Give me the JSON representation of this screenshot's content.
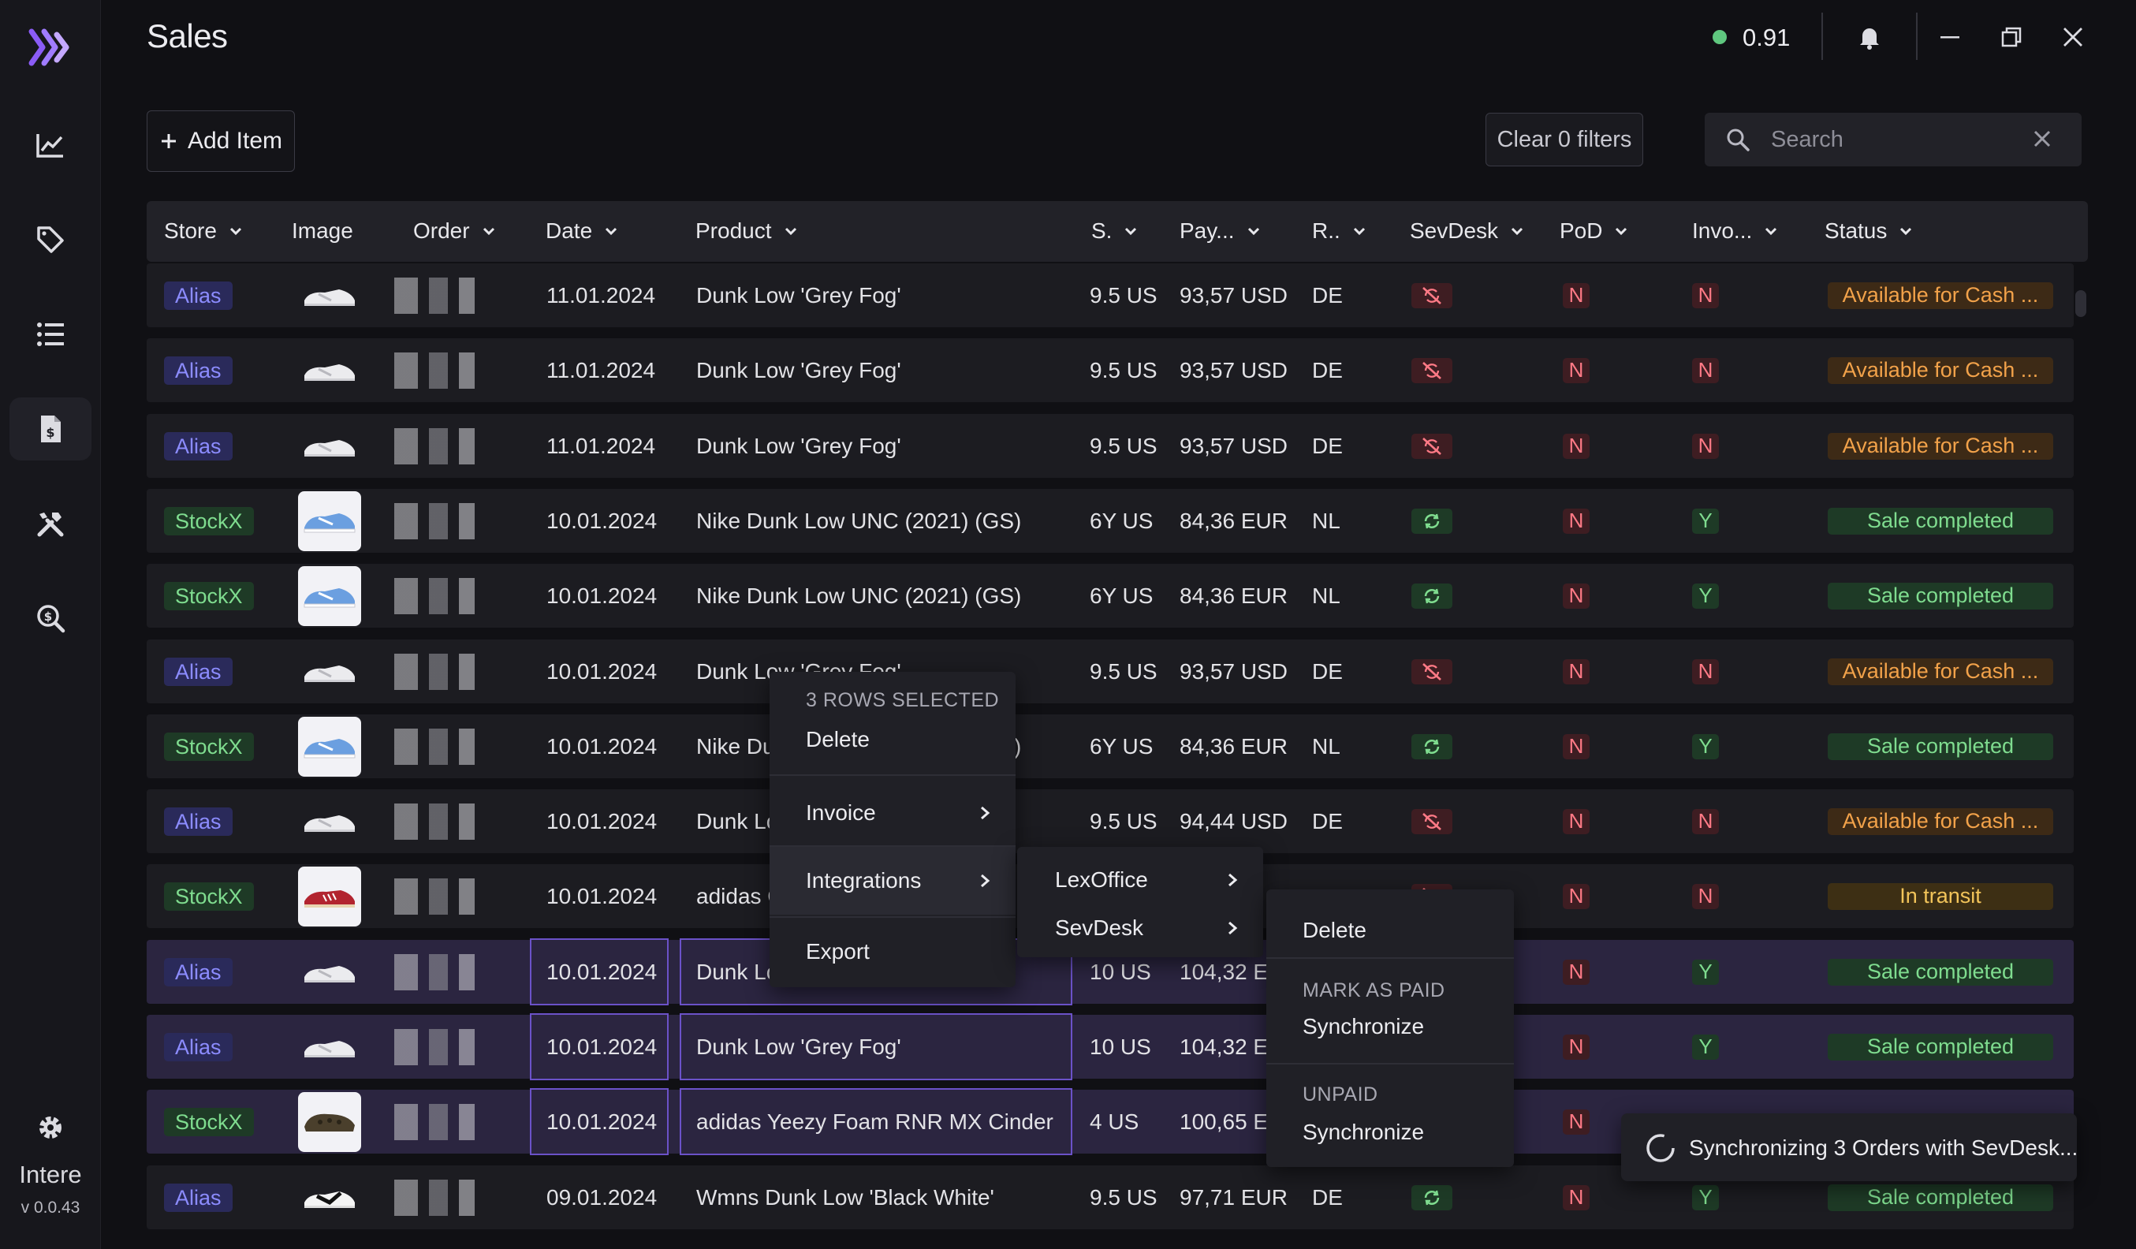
{
  "app": {
    "name": "Intere",
    "version": "v 0.0.43"
  },
  "page": {
    "title": "Sales"
  },
  "titlebar": {
    "connection_value": "0.91",
    "connection_color": "#5fc77f"
  },
  "toolbar": {
    "add_item_label": "Add Item",
    "clear_filters_label": "Clear 0 filters",
    "search_placeholder": "Search"
  },
  "sidebar": {
    "items": [
      {
        "icon": "chart-icon"
      },
      {
        "icon": "tag-icon"
      },
      {
        "icon": "list-icon"
      },
      {
        "icon": "invoice-icon",
        "active": true
      },
      {
        "icon": "tools-icon"
      },
      {
        "icon": "search-dollar-icon"
      }
    ],
    "settings_icon": "gear-icon"
  },
  "table": {
    "columns": [
      "Store",
      "Image",
      "Order",
      "Date",
      "Product",
      "S.",
      "Pay...",
      "R..",
      "SevDesk",
      "PoD",
      "Invo...",
      "Status"
    ],
    "rows": [
      {
        "store": "Alias",
        "date": "11.01.2024",
        "product": "Dunk Low 'Grey Fog'",
        "size": "9.5 US",
        "payout": "93,57 USD",
        "region": "DE",
        "sevdesk": "off",
        "pod": "N",
        "invoice": "N",
        "status": "Available for Cash ...",
        "status_kind": "cash",
        "image": "grey-fog",
        "selected": false
      },
      {
        "store": "Alias",
        "date": "11.01.2024",
        "product": "Dunk Low 'Grey Fog'",
        "size": "9.5 US",
        "payout": "93,57 USD",
        "region": "DE",
        "sevdesk": "off",
        "pod": "N",
        "invoice": "N",
        "status": "Available for Cash ...",
        "status_kind": "cash",
        "image": "grey-fog",
        "selected": false
      },
      {
        "store": "Alias",
        "date": "11.01.2024",
        "product": "Dunk Low 'Grey Fog'",
        "size": "9.5 US",
        "payout": "93,57 USD",
        "region": "DE",
        "sevdesk": "off",
        "pod": "N",
        "invoice": "N",
        "status": "Available for Cash ...",
        "status_kind": "cash",
        "image": "grey-fog",
        "selected": false
      },
      {
        "store": "StockX",
        "date": "10.01.2024",
        "product": "Nike Dunk Low UNC (2021) (GS)",
        "size": "6Y US",
        "payout": "84,36 EUR",
        "region": "NL",
        "sevdesk": "on",
        "pod": "N",
        "invoice": "Y",
        "status": "Sale completed",
        "status_kind": "done",
        "image": "unc",
        "selected": false
      },
      {
        "store": "StockX",
        "date": "10.01.2024",
        "product": "Nike Dunk Low UNC (2021) (GS)",
        "size": "6Y US",
        "payout": "84,36 EUR",
        "region": "NL",
        "sevdesk": "on",
        "pod": "N",
        "invoice": "Y",
        "status": "Sale completed",
        "status_kind": "done",
        "image": "unc",
        "selected": false
      },
      {
        "store": "Alias",
        "date": "10.01.2024",
        "product": "Dunk Low 'Grey Fog'",
        "size": "9.5 US",
        "payout": "93,57 USD",
        "region": "DE",
        "sevdesk": "off",
        "pod": "N",
        "invoice": "N",
        "status": "Available for Cash ...",
        "status_kind": "cash",
        "image": "grey-fog",
        "selected": false
      },
      {
        "store": "StockX",
        "date": "10.01.2024",
        "product": "Nike Dunk Low UNC (2021) (GS)",
        "size": "6Y US",
        "payout": "84,36 EUR",
        "region": "NL",
        "sevdesk": "on",
        "pod": "N",
        "invoice": "Y",
        "status": "Sale completed",
        "status_kind": "done",
        "image": "unc",
        "selected": false
      },
      {
        "store": "Alias",
        "date": "10.01.2024",
        "product": "Dunk Low 'Grey Fog'",
        "size": "9.5 US",
        "payout": "94,44 USD",
        "region": "DE",
        "sevdesk": "off",
        "pod": "N",
        "invoice": "N",
        "status": "Available for Cash ...",
        "status_kind": "cash",
        "image": "grey-fog",
        "selected": false
      },
      {
        "store": "StockX",
        "date": "10.01.2024",
        "product": "adidas Gazelle",
        "size": "",
        "payout": "",
        "region": "",
        "sevdesk": "off",
        "pod": "N",
        "invoice": "N",
        "status": "In transit",
        "status_kind": "transit",
        "image": "gazelle",
        "selected": false
      },
      {
        "store": "Alias",
        "date": "10.01.2024",
        "product": "Dunk Low 'Grey Fog'",
        "size": "10 US",
        "payout": "104,32 EUR",
        "region": "",
        "sevdesk": "",
        "pod": "N",
        "invoice": "Y",
        "status": "Sale completed",
        "status_kind": "done",
        "image": "grey-fog",
        "selected": true
      },
      {
        "store": "Alias",
        "date": "10.01.2024",
        "product": "Dunk Low 'Grey Fog'",
        "size": "10 US",
        "payout": "104,32 EUR",
        "region": "",
        "sevdesk": "",
        "pod": "N",
        "invoice": "Y",
        "status": "Sale completed",
        "status_kind": "done",
        "image": "grey-fog",
        "selected": true
      },
      {
        "store": "StockX",
        "date": "10.01.2024",
        "product": "adidas Yeezy Foam RNR MX Cinder",
        "size": "4 US",
        "payout": "100,65 EUR",
        "region": "",
        "sevdesk": "",
        "pod": "N",
        "invoice": "",
        "status": "",
        "status_kind": "",
        "image": "yeezy",
        "selected": true
      },
      {
        "store": "Alias",
        "date": "09.01.2024",
        "product": "Wmns Dunk Low 'Black White'",
        "size": "9.5 US",
        "payout": "97,71 EUR",
        "region": "DE",
        "sevdesk": "on",
        "pod": "N",
        "invoice": "Y",
        "status": "Sale completed",
        "status_kind": "done",
        "image": "panda",
        "selected": false
      }
    ]
  },
  "context_menu": {
    "header": "3 ROWS SELECTED",
    "delete": "Delete",
    "invoice": "Invoice",
    "integrations": "Integrations",
    "export": "Export"
  },
  "integrations_menu": {
    "lexoffice": "LexOffice",
    "sevdesk": "SevDesk"
  },
  "sevdesk_menu": {
    "delete": "Delete",
    "mark_as_paid_header": "MARK AS PAID",
    "mark_as_paid_action": "Synchronize",
    "unpaid_header": "UNPAID",
    "unpaid_action": "Synchronize"
  },
  "toast": {
    "text": "Synchronizing 3 Orders with SevDesk..."
  }
}
